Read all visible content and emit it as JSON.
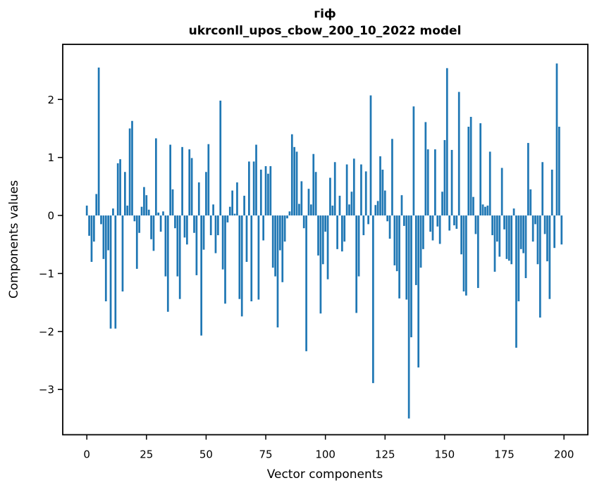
{
  "title": "гіф",
  "subtitle": "ukrconll_upos_cbow_200_10_2022 model",
  "colors": {
    "bar": "#1f77b4",
    "text": "#000000",
    "background": "#ffffff",
    "spine": "#000000"
  },
  "chart_data": {
    "type": "bar",
    "title": "гіф",
    "subtitle": "ukrconll_upos_cbow_200_10_2022 model",
    "xlabel": "Vector components",
    "ylabel": "Components values",
    "legend": null,
    "grid": false,
    "bar_color": "#1f77b4",
    "n_components": 200,
    "x_ticks": [
      0,
      25,
      50,
      75,
      100,
      125,
      150,
      175,
      200
    ],
    "y_ticks": [
      2,
      1,
      0,
      -1,
      -2,
      -3
    ],
    "xlim": [
      -10.1,
      210.0
    ],
    "ylim": [
      -3.78,
      2.95
    ],
    "values": [
      0.17,
      -0.35,
      -0.8,
      -0.45,
      0.37,
      2.55,
      -0.15,
      -0.75,
      -1.48,
      -0.6,
      -1.95,
      0.12,
      -1.95,
      0.9,
      0.97,
      -1.31,
      0.75,
      0.17,
      1.5,
      1.63,
      -0.1,
      -0.92,
      -0.3,
      0.15,
      0.49,
      0.35,
      0.1,
      -0.41,
      -0.61,
      1.33,
      0.05,
      -0.28,
      0.07,
      -1.05,
      -1.66,
      1.22,
      0.45,
      -0.22,
      -1.05,
      -1.44,
      1.18,
      -0.38,
      -0.5,
      1.14,
      0.99,
      -0.3,
      -1.03,
      0.57,
      -2.07,
      -0.59,
      0.75,
      1.23,
      -0.34,
      0.19,
      -0.65,
      -0.34,
      1.98,
      -0.93,
      -1.52,
      -0.12,
      0.15,
      0.43,
      0.03,
      0.57,
      -1.44,
      -1.74,
      0.34,
      -0.8,
      0.93,
      -1.48,
      0.93,
      1.22,
      -1.45,
      0.79,
      -0.43,
      0.85,
      0.72,
      0.85,
      -0.9,
      -1.05,
      -1.93,
      -0.6,
      -1.15,
      -0.45,
      -0.05,
      0.07,
      1.4,
      1.18,
      1.1,
      0.2,
      0.59,
      -0.22,
      -2.34,
      0.46,
      0.19,
      1.06,
      0.75,
      -0.69,
      -1.69,
      -0.84,
      -0.28,
      -1.1,
      0.65,
      0.17,
      0.92,
      -0.58,
      0.34,
      -0.62,
      -0.45,
      0.88,
      0.19,
      0.41,
      0.98,
      -1.68,
      -1.05,
      0.88,
      -0.34,
      0.76,
      -0.15,
      2.07,
      -2.89,
      0.18,
      0.25,
      1.02,
      0.79,
      0.43,
      -0.1,
      -0.4,
      1.32,
      -0.86,
      -0.96,
      -1.43,
      0.35,
      -0.18,
      -1.45,
      -3.5,
      -2.1,
      1.88,
      -1.2,
      -2.62,
      -0.9,
      -0.58,
      1.61,
      1.14,
      -0.28,
      -0.43,
      1.14,
      -0.19,
      -0.49,
      0.41,
      1.3,
      2.54,
      -0.26,
      1.13,
      -0.17,
      -0.23,
      2.13,
      -0.67,
      -1.31,
      -1.38,
      1.53,
      1.7,
      0.32,
      -0.32,
      -1.25,
      1.59,
      0.19,
      0.15,
      0.17,
      1.1,
      -0.34,
      -0.97,
      -0.45,
      -0.71,
      0.82,
      -0.24,
      -0.75,
      -0.78,
      -0.84,
      0.12,
      -2.28,
      -1.48,
      -0.58,
      -0.65,
      -1.08,
      1.25,
      0.45,
      -0.45,
      -0.15,
      -0.84,
      -1.76,
      0.92,
      -0.32,
      -0.79,
      -1.44,
      0.79,
      -0.56,
      2.62,
      1.53,
      -0.5
    ]
  }
}
